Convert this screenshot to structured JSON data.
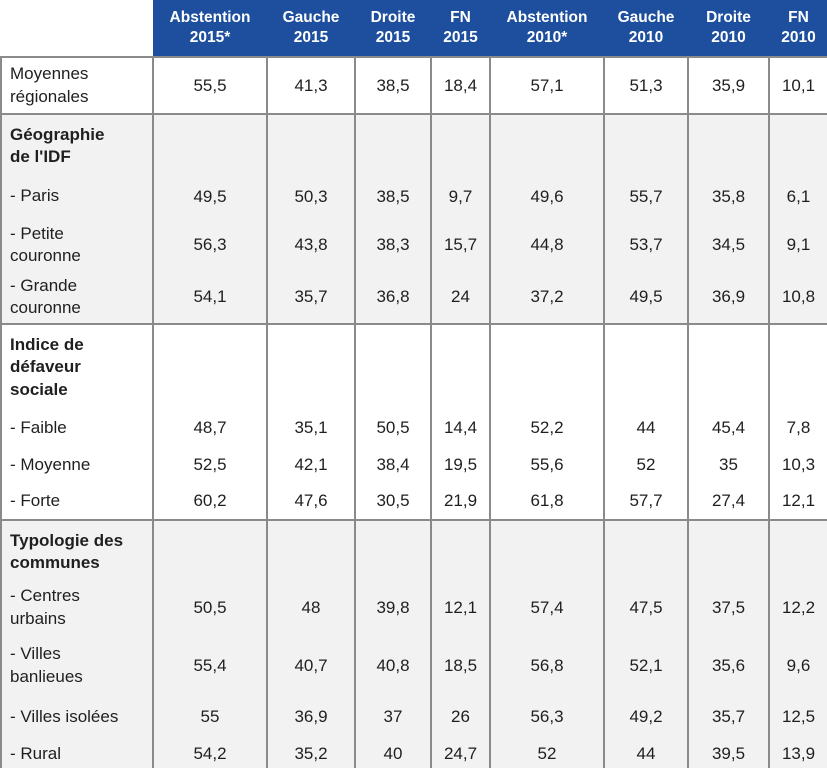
{
  "colors": {
    "header_bg": "#1d4f9e",
    "header_text": "#ffffff",
    "row_bg": "#ffffff",
    "row_alt_bg": "#f2f2f2",
    "border": "#8a8a8a",
    "text": "#1f1f1f"
  },
  "table": {
    "columns": [
      "Abstention\n2015*",
      "Gauche\n2015",
      "Droite\n2015",
      "FN\n2015",
      "Abstention\n2010*",
      "Gauche\n2010",
      "Droite\n2010",
      "FN\n2010"
    ],
    "sections": [
      {
        "title": null,
        "shaded": false,
        "rows": [
          {
            "label": "Moyennes\nrégionales",
            "values": [
              "55,5",
              "41,3",
              "38,5",
              "18,4",
              "57,1",
              "51,3",
              "35,9",
              "10,1"
            ]
          }
        ]
      },
      {
        "title": "Géographie\nde l'IDF",
        "shaded": true,
        "rows": [
          {
            "label": "- Paris",
            "values": [
              "49,5",
              "50,3",
              "38,5",
              "9,7",
              "49,6",
              "55,7",
              "35,8",
              "6,1"
            ]
          },
          {
            "label": "- Petite\ncouronne",
            "values": [
              "56,3",
              "43,8",
              "38,3",
              "15,7",
              "44,8",
              "53,7",
              "34,5",
              "9,1"
            ]
          },
          {
            "label": "- Grande\ncouronne",
            "values": [
              "54,1",
              "35,7",
              "36,8",
              "24",
              "37,2",
              "49,5",
              "36,9",
              "10,8"
            ]
          }
        ]
      },
      {
        "title": "Indice de\ndéfaveur\nsociale",
        "shaded": false,
        "rows": [
          {
            "label": "- Faible",
            "values": [
              "48,7",
              "35,1",
              "50,5",
              "14,4",
              "52,2",
              "44",
              "45,4",
              "7,8"
            ]
          },
          {
            "label": "- Moyenne",
            "values": [
              "52,5",
              "42,1",
              "38,4",
              "19,5",
              "55,6",
              "52",
              "35",
              "10,3"
            ]
          },
          {
            "label": "- Forte",
            "values": [
              "60,2",
              "47,6",
              "30,5",
              "21,9",
              "61,8",
              "57,7",
              "27,4",
              "12,1"
            ]
          }
        ]
      },
      {
        "title": "Typologie des\ncommunes",
        "shaded": true,
        "rows": [
          {
            "label": "- Centres\nurbains",
            "values": [
              "50,5",
              "48",
              "39,8",
              "12,1",
              "57,4",
              "47,5",
              "37,5",
              "12,2"
            ]
          },
          {
            "label": "- Villes\nbanlieues",
            "values": [
              "55,4",
              "40,7",
              "40,8",
              "18,5",
              "56,8",
              "52,1",
              "35,6",
              "9,6"
            ]
          },
          {
            "label": "- Villes isolées",
            "values": [
              "55",
              "36,9",
              "37",
              "26",
              "56,3",
              "49,2",
              "35,7",
              "12,5"
            ]
          },
          {
            "label": "- Rural",
            "values": [
              "54,2",
              "35,2",
              "40",
              "24,7",
              "52",
              "44",
              "39,5",
              "13,9"
            ]
          }
        ]
      }
    ]
  },
  "chart_data": {
    "type": "table",
    "columns": [
      "Abstention 2015*",
      "Gauche 2015",
      "Droite 2015",
      "FN 2015",
      "Abstention 2010*",
      "Gauche 2010",
      "Droite 2010",
      "FN 2010"
    ],
    "groups": [
      {
        "group": null,
        "rows": [
          {
            "label": "Moyennes régionales",
            "values": [
              55.5,
              41.3,
              38.5,
              18.4,
              57.1,
              51.3,
              35.9,
              10.1
            ]
          }
        ]
      },
      {
        "group": "Géographie de l'IDF",
        "rows": [
          {
            "label": "Paris",
            "values": [
              49.5,
              50.3,
              38.5,
              9.7,
              49.6,
              55.7,
              35.8,
              6.1
            ]
          },
          {
            "label": "Petite couronne",
            "values": [
              56.3,
              43.8,
              38.3,
              15.7,
              44.8,
              53.7,
              34.5,
              9.1
            ]
          },
          {
            "label": "Grande couronne",
            "values": [
              54.1,
              35.7,
              36.8,
              24,
              37.2,
              49.5,
              36.9,
              10.8
            ]
          }
        ]
      },
      {
        "group": "Indice de défaveur sociale",
        "rows": [
          {
            "label": "Faible",
            "values": [
              48.7,
              35.1,
              50.5,
              14.4,
              52.2,
              44,
              45.4,
              7.8
            ]
          },
          {
            "label": "Moyenne",
            "values": [
              52.5,
              42.1,
              38.4,
              19.5,
              55.6,
              52,
              35,
              10.3
            ]
          },
          {
            "label": "Forte",
            "values": [
              60.2,
              47.6,
              30.5,
              21.9,
              61.8,
              57.7,
              27.4,
              12.1
            ]
          }
        ]
      },
      {
        "group": "Typologie des communes",
        "rows": [
          {
            "label": "Centres urbains",
            "values": [
              50.5,
              48,
              39.8,
              12.1,
              57.4,
              47.5,
              37.5,
              12.2
            ]
          },
          {
            "label": "Villes banlieues",
            "values": [
              55.4,
              40.7,
              40.8,
              18.5,
              56.8,
              52.1,
              35.6,
              9.6
            ]
          },
          {
            "label": "Villes isolées",
            "values": [
              55,
              36.9,
              37,
              26,
              56.3,
              49.2,
              35.7,
              12.5
            ]
          },
          {
            "label": "Rural",
            "values": [
              54.2,
              35.2,
              40,
              24.7,
              52,
              44,
              39.5,
              13.9
            ]
          }
        ]
      }
    ]
  }
}
